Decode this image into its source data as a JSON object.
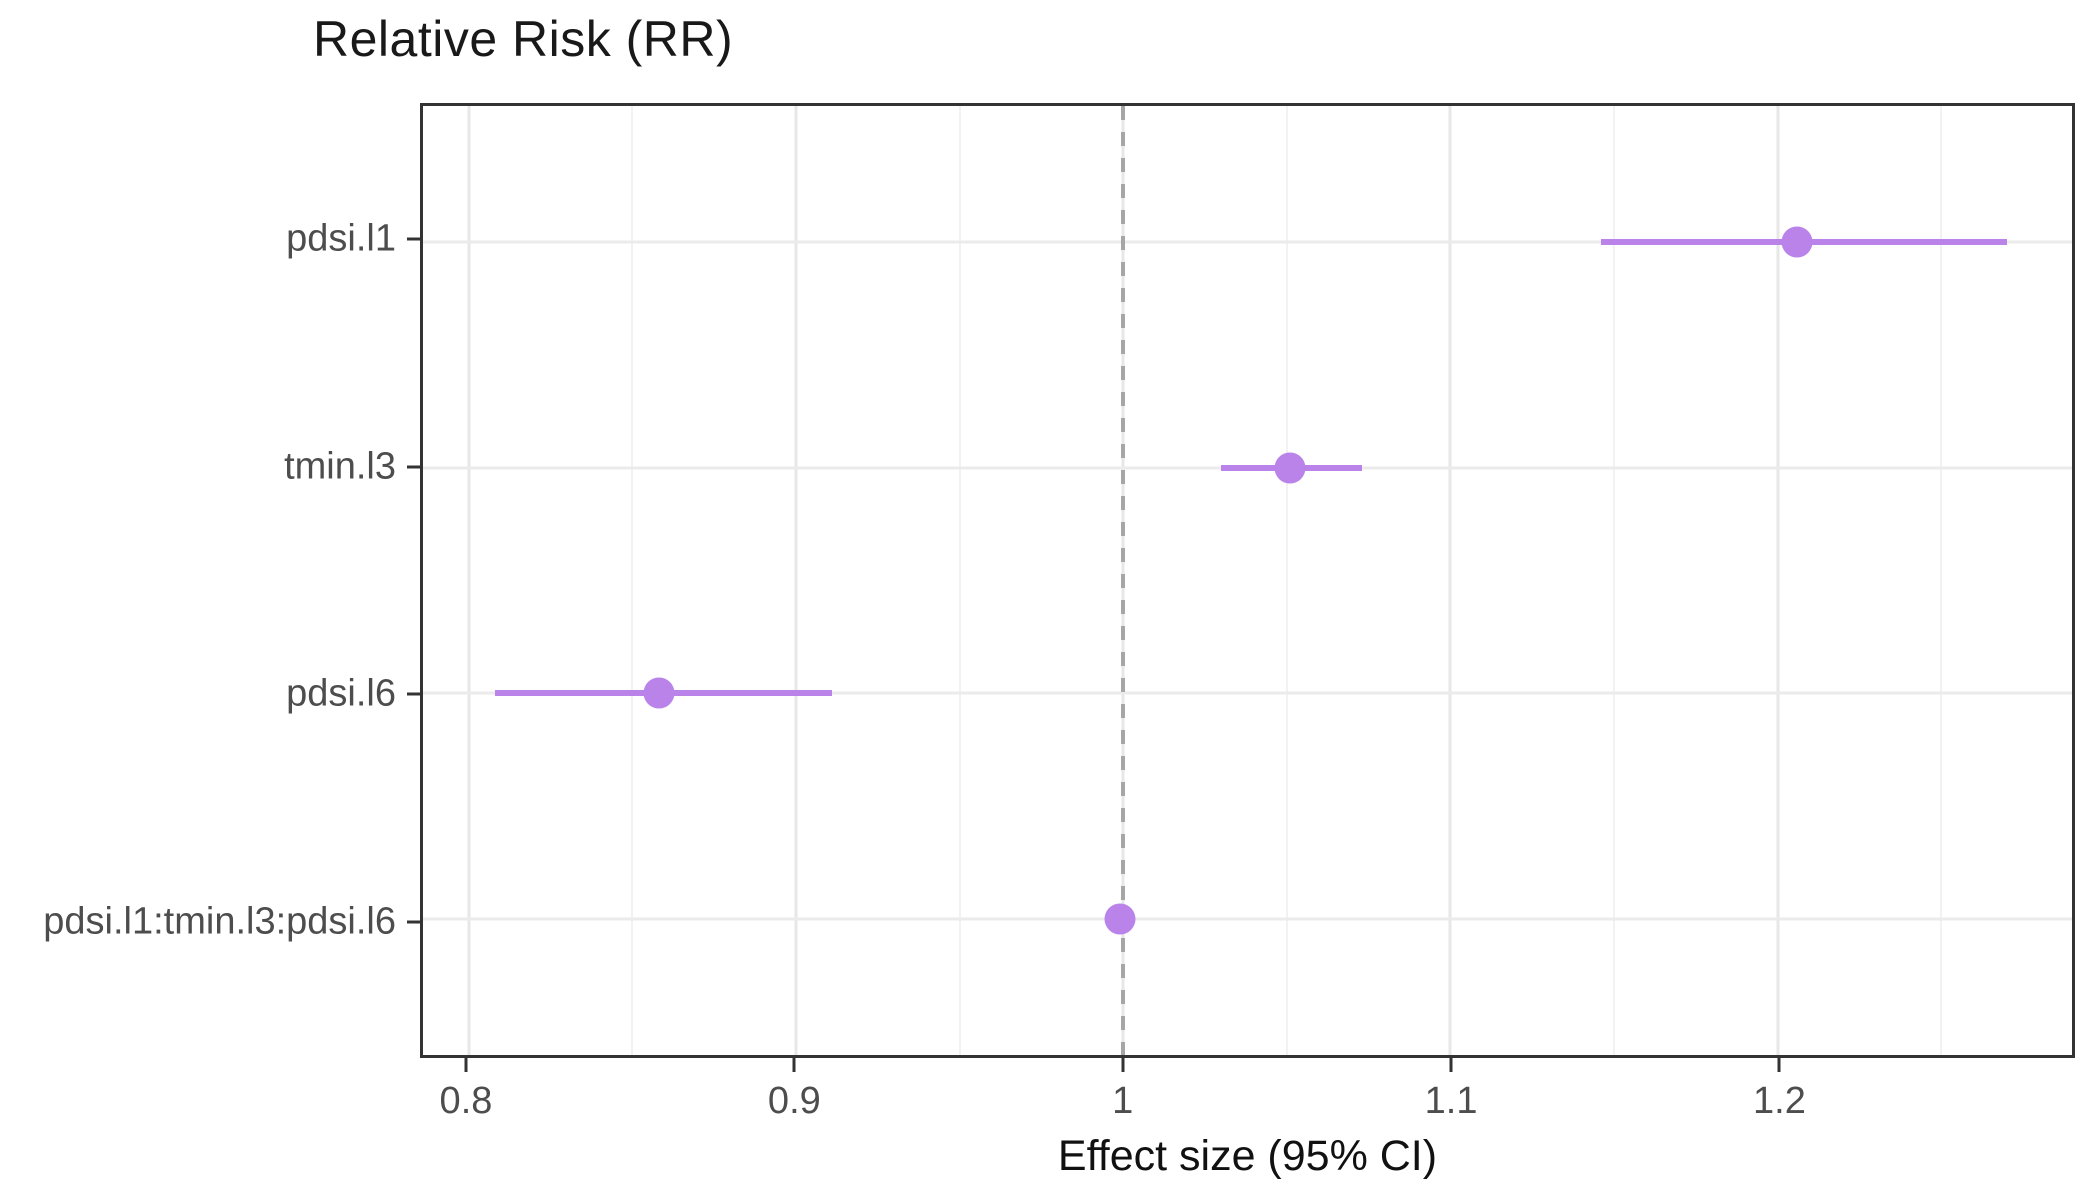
{
  "figure": {
    "title": "Relative Risk (RR)",
    "xlabel": "Effect size (95% CI)"
  },
  "colors": {
    "point_and_ci": "#b983ea",
    "reference_line": "#a6a6a6",
    "grid_major": "#e7e7e7",
    "grid_minor": "#f2f2f2",
    "panel_border": "#333333",
    "axis_text": "#4d4d4d",
    "title_text": "#191919"
  },
  "chart_data": {
    "type": "scatter",
    "subtype": "forest-plot-dot-whisker",
    "title": "Relative Risk (RR)",
    "xlabel": "Effect size (95% CI)",
    "ylabel": "",
    "xlim": [
      0.786,
      1.29
    ],
    "x_ticks": [
      0.8,
      0.9,
      1.0,
      1.1,
      1.2
    ],
    "x_tick_labels": [
      "0.8",
      "0.9",
      "1",
      "1.1",
      "1.2"
    ],
    "x_minor_ticks": [
      0.85,
      0.95,
      1.05,
      1.15,
      1.25
    ],
    "grid": true,
    "legend": false,
    "reference_line": {
      "x": 1.0,
      "style": "dashed"
    },
    "categories": [
      "pdsi.l1",
      "tmin.l3",
      "pdsi.l6",
      "pdsi.l1:tmin.l3:pdsi.l6"
    ],
    "rows": [
      {
        "label": "pdsi.l1",
        "estimate": 1.206,
        "ci_low": 1.146,
        "ci_high": 1.27
      },
      {
        "label": "tmin.l3",
        "estimate": 1.051,
        "ci_low": 1.03,
        "ci_high": 1.073
      },
      {
        "label": "pdsi.l6",
        "estimate": 0.858,
        "ci_low": 0.808,
        "ci_high": 0.911
      },
      {
        "label": "pdsi.l1:tmin.l3:pdsi.l6",
        "estimate": 0.999,
        "ci_low": 0.995,
        "ci_high": 1.003
      }
    ]
  }
}
